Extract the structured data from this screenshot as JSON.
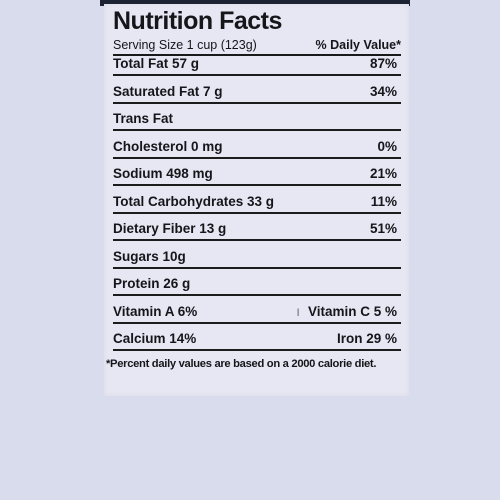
{
  "label": {
    "title": "Nutrition Facts",
    "serving_size": "Serving Size 1 cup (123g)",
    "daily_value_header": "% Daily Value*",
    "rows": [
      {
        "left": "Total Fat 57 g",
        "right": "87%"
      },
      {
        "left": "Saturated Fat 7 g",
        "right": "34%"
      },
      {
        "left": "Trans Fat",
        "right": ""
      },
      {
        "left": "Cholesterol 0 mg",
        "right": "0%"
      },
      {
        "left": "Sodium 498 mg",
        "right": "21%"
      },
      {
        "left": "Total Carbohydrates 33 g",
        "right": "11%"
      },
      {
        "left": "Dietary Fiber 13 g",
        "right": "51%"
      },
      {
        "left": "Sugars 10g",
        "right": ""
      },
      {
        "left": "Protein 26 g",
        "right": ""
      },
      {
        "left": "Vitamin A 6%",
        "right": "Vitamin C 5 %"
      },
      {
        "left": "Calcium 14%",
        "right": "Iron 29 %"
      }
    ],
    "footnote": "*Percent daily values are based on a 2000 calorie diet."
  }
}
